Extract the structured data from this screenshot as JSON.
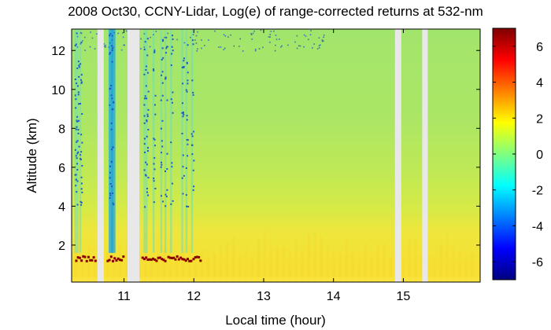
{
  "chart_data": {
    "type": "heatmap",
    "title": "2008 Oct30, CCNY-Lidar, Log(e) of range-corrected returns at 532-nm",
    "xlabel": "Local time (hour)",
    "ylabel": "Altitude (km)",
    "xlim": [
      10.25,
      16.1
    ],
    "ylim": [
      0.1,
      13.1
    ],
    "x_ticks": [
      11,
      12,
      13,
      14,
      15
    ],
    "y_ticks": [
      2,
      4,
      6,
      8,
      10,
      12
    ],
    "colorbar": {
      "range": [
        -7,
        7
      ],
      "ticks": [
        -6,
        -4,
        -2,
        0,
        2,
        4,
        6
      ],
      "colormap": "jet"
    },
    "data_gaps_hours": [
      [
        10.62,
        10.71
      ],
      [
        11.05,
        11.22
      ],
      [
        14.88,
        14.97
      ],
      [
        15.27,
        15.35
      ]
    ],
    "cloud_layer_altitude_km": 1.3,
    "colors": {
      "background_aloft": "#9EE46E",
      "mid": "#C4EA4E",
      "boundary_layer": "#F5E33A",
      "cloud": "#8B0000",
      "noise": "#1E5AC8",
      "gap": "#E8E8E8"
    }
  }
}
